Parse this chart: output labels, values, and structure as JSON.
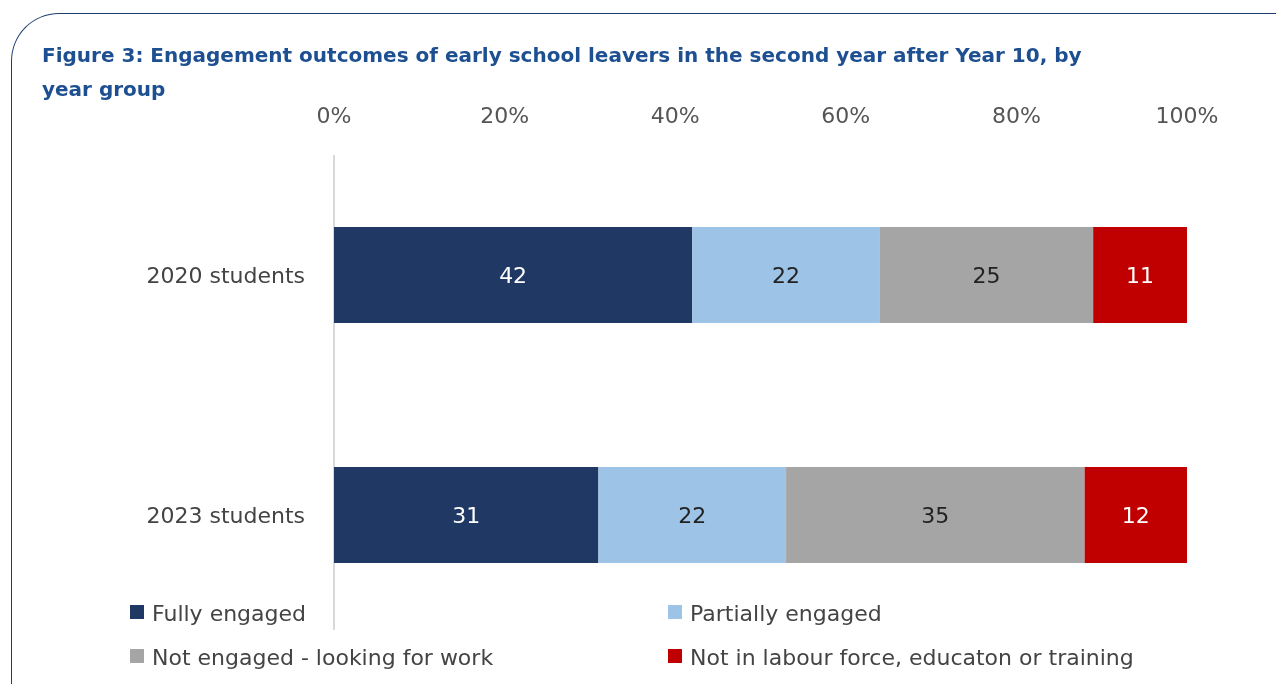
{
  "chart_data": {
    "type": "bar",
    "orientation": "horizontal",
    "stacked": true,
    "title": "Figure 3: Engagement outcomes of early school leavers in the second year after Year 10, by year group",
    "categories": [
      "2020 students",
      "2023 students"
    ],
    "series": [
      {
        "name": "Fully engaged",
        "color": "#1f3864",
        "values": [
          42,
          31
        ]
      },
      {
        "name": "Partially engaged",
        "color": "#9dc3e6",
        "values": [
          22,
          22
        ]
      },
      {
        "name": "Not engaged - looking for work",
        "color": "#a5a5a5",
        "values": [
          25,
          35
        ]
      },
      {
        "name": "Not in labour force, educaton or training",
        "color": "#c00000",
        "values": [
          11,
          12
        ]
      }
    ],
    "xlim": [
      0,
      100
    ],
    "xticks": [
      {
        "value": 0,
        "label": "0%"
      },
      {
        "value": 20,
        "label": "20%"
      },
      {
        "value": 40,
        "label": "40%"
      },
      {
        "value": 60,
        "label": "60%"
      },
      {
        "value": 80,
        "label": "80%"
      },
      {
        "value": 100,
        "label": "100%"
      }
    ],
    "data_labels": true,
    "legend": "bottom",
    "grid": false
  }
}
